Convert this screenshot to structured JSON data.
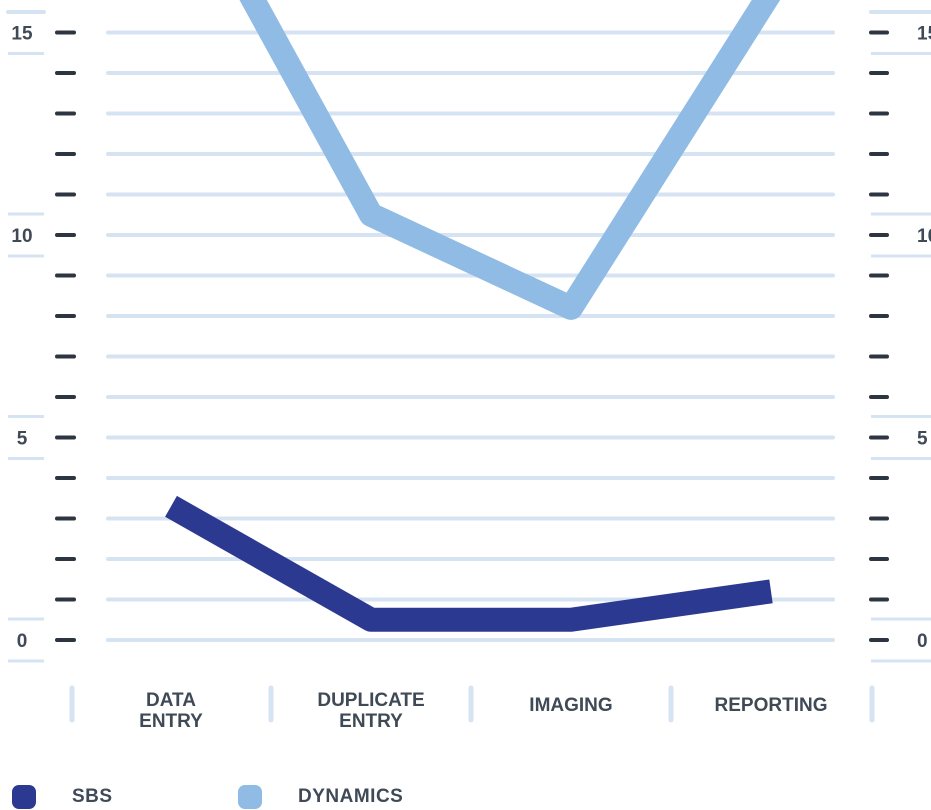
{
  "chart_data": {
    "type": "line",
    "categories": [
      "DATA ENTRY",
      "DUPLICATE ENTRY",
      "IMAGING",
      "REPORTING"
    ],
    "series": [
      {
        "name": "SBS",
        "values": [
          3.3,
          0.5,
          0.5,
          1.2
        ],
        "color": "#2b3990"
      },
      {
        "name": "DYNAMICS",
        "values": [
          19.5,
          10.5,
          8.2,
          16.0
        ],
        "color": "#8fbbe4"
      }
    ],
    "ylim": [
      0,
      19.5
    ],
    "ytick_labels": [
      "0",
      "5",
      "10",
      "15"
    ],
    "yticks": [
      0,
      5,
      10,
      15
    ],
    "minor_tick_step": 1,
    "grid": true,
    "title": "",
    "xlabel": "",
    "ylabel": "",
    "legend_position": "bottom-left",
    "grid_color": "#d6e3f2",
    "axis_tick_color": "#2d3640"
  }
}
